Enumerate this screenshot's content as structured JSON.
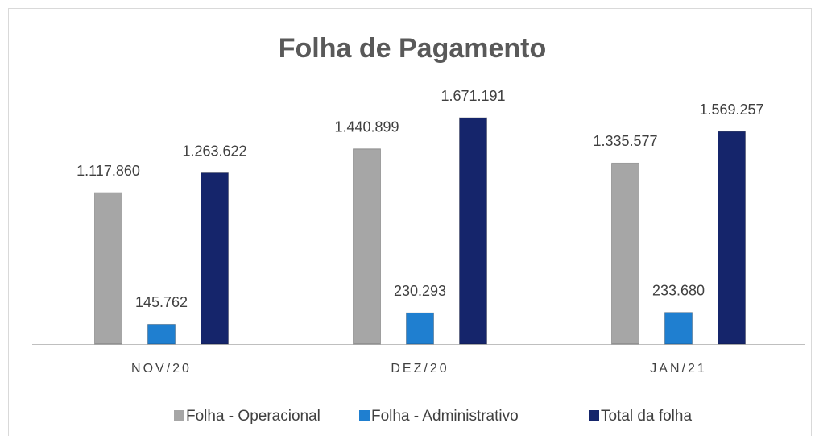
{
  "chart_data": {
    "type": "bar",
    "title": "Folha de Pagamento",
    "categories": [
      "NOV/20",
      "DEZ/20",
      "JAN/21"
    ],
    "series": [
      {
        "name": "Folha - Operacional",
        "color": "#a6a6a6",
        "values": [
          1117860,
          1440899,
          1335577
        ],
        "value_labels": [
          "1.117.860",
          "1.440.899",
          "1.335.577"
        ]
      },
      {
        "name": "Folha - Administrativo",
        "color": "#1f7fd0",
        "values": [
          145762,
          230293,
          233680
        ],
        "value_labels": [
          "145.762",
          "230.293",
          "233.680"
        ]
      },
      {
        "name": "Total da folha",
        "color": "#15256b",
        "values": [
          1263622,
          1671191,
          1569257
        ],
        "value_labels": [
          "1.263.622",
          "1.671.191",
          "1.569.257"
        ]
      }
    ],
    "legend": "bottom"
  }
}
